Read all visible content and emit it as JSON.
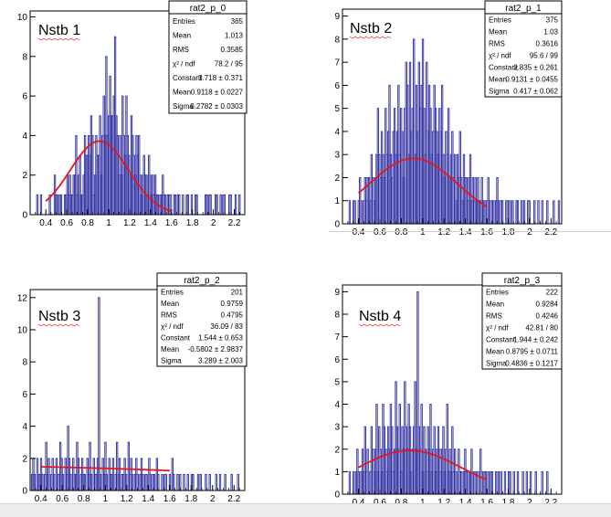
{
  "colors": {
    "hist": "#2b2b9f",
    "fit": "#e8141a",
    "frame": "#000000"
  },
  "chart_data": [
    {
      "type": "histogram",
      "label": "Nstb 1",
      "stats": {
        "title": "rat2_p_0",
        "rows": [
          {
            "k": "Entries",
            "v": "365"
          },
          {
            "k": "Mean",
            "v": "1.013"
          },
          {
            "k": "RMS",
            "v": "0.3585"
          },
          {
            "k": "χ² / ndf",
            "v": "78.2 / 95"
          },
          {
            "k": "Constant",
            "v": "3.718 ± 0.371"
          },
          {
            "k": "Mean",
            "v": "0.9118 ± 0.0227"
          },
          {
            "k": "Sigma",
            "v": "0.2782 ± 0.0303"
          }
        ]
      },
      "xlim": [
        0.25,
        2.3
      ],
      "ylim": [
        0,
        10.3
      ],
      "xticks": [
        "0.4",
        "0.6",
        "0.8",
        "1",
        "1.2",
        "1.4",
        "1.6",
        "1.8",
        "2",
        "2.2"
      ],
      "yticks": [
        "0",
        "2",
        "4",
        "6",
        "8",
        "10"
      ],
      "fit": {
        "constant": 3.718,
        "mean": 0.9118,
        "sigma": 0.2782,
        "range": [
          0.4,
          1.6
        ]
      },
      "bin_width": 0.012,
      "counts": [
        0,
        1,
        0,
        0,
        1,
        0,
        0,
        0,
        0,
        0,
        0,
        1,
        0,
        0,
        0,
        2,
        1,
        1,
        0,
        1,
        1,
        0,
        0,
        1,
        1,
        2,
        1,
        2,
        1,
        1,
        2,
        2,
        4,
        1,
        2,
        3,
        1,
        1,
        2,
        4,
        3,
        3,
        4,
        3,
        5,
        4,
        1,
        2,
        4,
        3,
        3,
        5,
        2,
        4,
        6,
        4,
        8,
        4,
        5,
        7,
        5,
        5,
        6,
        9,
        5,
        4,
        2,
        4,
        2,
        6,
        4,
        3,
        6,
        4,
        3,
        2,
        5,
        4,
        3,
        2,
        4,
        3,
        4,
        2,
        1,
        2,
        3,
        2,
        2,
        1,
        3,
        2,
        1,
        2,
        1,
        2,
        1,
        1,
        0,
        1,
        1,
        2,
        1,
        1,
        0,
        1,
        1,
        1,
        0,
        0,
        1,
        1,
        0,
        1,
        1,
        0,
        0,
        1,
        0,
        0,
        1,
        1,
        0,
        0,
        1,
        0,
        0,
        1,
        1,
        0,
        0,
        0,
        0,
        0,
        0,
        1,
        1,
        0,
        1,
        1,
        0,
        0,
        0,
        1,
        1,
        0,
        0,
        1,
        0,
        1,
        1,
        0,
        0,
        0,
        1,
        1,
        0,
        0,
        0,
        1,
        0,
        0,
        1,
        0,
        0,
        0,
        0,
        1,
        1,
        0,
        0,
        0,
        1,
        0,
        0,
        0,
        0,
        0,
        0,
        0
      ]
    },
    {
      "type": "histogram",
      "label": "Nstb 2",
      "stats": {
        "title": "rat2_p_1",
        "rows": [
          {
            "k": "Entries",
            "v": "375"
          },
          {
            "k": "Mean",
            "v": "1.03"
          },
          {
            "k": "RMS",
            "v": "0.3616"
          },
          {
            "k": "χ² / ndf",
            "v": "95.6 / 99"
          },
          {
            "k": "Constant",
            "v": "2.835 ± 0.261"
          },
          {
            "k": "Mean",
            "v": "0.9131 ± 0.0455"
          },
          {
            "k": "Sigma",
            "v": "0.417 ± 0.062"
          }
        ]
      },
      "xlim": [
        0.25,
        2.3
      ],
      "ylim": [
        0,
        9.3
      ],
      "xticks": [
        "0.4",
        "0.6",
        "0.8",
        "1",
        "1.2",
        "1.4",
        "1.6",
        "1.8",
        "2",
        "2.2"
      ],
      "yticks": [
        "0",
        "1",
        "2",
        "3",
        "4",
        "5",
        "6",
        "7",
        "8",
        "9"
      ],
      "fit": {
        "constant": 2.835,
        "mean": 0.9131,
        "sigma": 0.417,
        "range": [
          0.4,
          1.6
        ]
      },
      "bin_width": 0.012,
      "counts": [
        0,
        1,
        0,
        0,
        1,
        1,
        0,
        0,
        1,
        2,
        1,
        0,
        1,
        2,
        1,
        2,
        2,
        1,
        3,
        2,
        1,
        2,
        3,
        5,
        3,
        2,
        4,
        3,
        2,
        5,
        3,
        4,
        6,
        3,
        2,
        4,
        5,
        3,
        4,
        6,
        3,
        5,
        4,
        2,
        5,
        7,
        6,
        3,
        7,
        4,
        5,
        8,
        3,
        6,
        4,
        7,
        5,
        6,
        8,
        5,
        3,
        7,
        4,
        6,
        5,
        3,
        4,
        6,
        5,
        4,
        3,
        5,
        4,
        6,
        3,
        2,
        4,
        3,
        5,
        2,
        3,
        4,
        2,
        3,
        1,
        3,
        2,
        4,
        2,
        1,
        3,
        2,
        2,
        1,
        2,
        3,
        1,
        2,
        1,
        2,
        1,
        2,
        1,
        1,
        2,
        1,
        1,
        0,
        1,
        2,
        1,
        0,
        1,
        1,
        0,
        1,
        2,
        1,
        0,
        1,
        1,
        0,
        0,
        1,
        1,
        0,
        1,
        0,
        1,
        0,
        0,
        1,
        1,
        0,
        0,
        1,
        0,
        1,
        0,
        0,
        1,
        1,
        0,
        0,
        0,
        1,
        0,
        0,
        1,
        0,
        0,
        1,
        0,
        0,
        0,
        1,
        0,
        0,
        0,
        0,
        1,
        0,
        0,
        0,
        1,
        0,
        0,
        0,
        0,
        0,
        1,
        0,
        0
      ]
    },
    {
      "type": "histogram",
      "label": "Nstb 3",
      "stats": {
        "title": "rat2_p_2",
        "rows": [
          {
            "k": "Entries",
            "v": "201"
          },
          {
            "k": "Mean",
            "v": "0.9759"
          },
          {
            "k": "RMS",
            "v": "0.4795"
          },
          {
            "k": "χ² / ndf",
            "v": "36.09 / 83"
          },
          {
            "k": "Constant",
            "v": "1.544 ± 0.653"
          },
          {
            "k": "Mean",
            "v": "-0.5802 ± 2.9837"
          },
          {
            "k": "Sigma",
            "v": "3.289 ± 2.003"
          }
        ]
      },
      "xlim": [
        0.3,
        2.3
      ],
      "ylim": [
        0,
        12.5
      ],
      "xticks": [
        "0.4",
        "0.6",
        "0.8",
        "1",
        "1.2",
        "1.4",
        "1.6",
        "1.8",
        "2",
        "2.2"
      ],
      "yticks": [
        "0",
        "2",
        "4",
        "6",
        "8",
        "10",
        "12"
      ],
      "fit": {
        "constant": 1.544,
        "mean": -0.5802,
        "sigma": 3.289,
        "range": [
          0.4,
          1.6
        ]
      },
      "bin_width": 0.012,
      "counts": [
        0,
        1,
        2,
        1,
        0,
        2,
        1,
        1,
        2,
        1,
        0,
        1,
        3,
        1,
        2,
        0,
        1,
        2,
        1,
        0,
        2,
        1,
        1,
        3,
        2,
        1,
        0,
        2,
        1,
        4,
        2,
        1,
        0,
        2,
        1,
        1,
        3,
        2,
        0,
        1,
        2,
        1,
        1,
        0,
        2,
        1,
        3,
        1,
        0,
        2,
        1,
        1,
        2,
        12,
        1,
        0,
        2,
        1,
        3,
        1,
        0,
        2,
        1,
        1,
        2,
        0,
        1,
        3,
        1,
        2,
        0,
        1,
        1,
        2,
        1,
        0,
        3,
        1,
        2,
        1,
        0,
        1,
        2,
        1,
        0,
        1,
        2,
        1,
        0,
        1,
        1,
        0,
        2,
        1,
        0,
        1,
        1,
        0,
        2,
        1,
        0,
        0,
        1,
        0,
        1,
        1,
        0,
        0,
        1,
        0,
        2,
        1,
        0,
        0,
        1,
        0,
        1,
        0,
        0,
        1,
        0,
        0,
        1,
        0,
        0,
        1,
        1,
        0,
        0,
        0,
        1,
        0,
        1,
        0,
        0,
        0,
        1,
        0,
        0,
        1,
        0,
        0,
        0,
        0,
        1,
        0,
        0,
        1,
        0,
        0,
        0,
        1,
        0,
        0,
        0,
        0,
        1,
        0,
        0,
        0,
        0,
        1,
        0,
        0
      ]
    },
    {
      "type": "histogram",
      "label": "Nstb 4",
      "stats": {
        "title": "rat2_p_3",
        "rows": [
          {
            "k": "Entries",
            "v": "222"
          },
          {
            "k": "Mean",
            "v": "0.9284"
          },
          {
            "k": "RMS",
            "v": "0.4246"
          },
          {
            "k": "χ² / ndf",
            "v": "42.81 / 80"
          },
          {
            "k": "Constant",
            "v": "1.944 ± 0.242"
          },
          {
            "k": "Mean",
            "v": "0.8795 ± 0.0711"
          },
          {
            "k": "Sigma",
            "v": "0.4836 ± 0.1217"
          }
        ]
      },
      "xlim": [
        0.25,
        2.3
      ],
      "ylim": [
        0,
        9.3
      ],
      "xticks": [
        "0.4",
        "0.6",
        "0.8",
        "1",
        "1.2",
        "1.4",
        "1.6",
        "1.8",
        "2",
        "2.2"
      ],
      "yticks": [
        "0",
        "1",
        "2",
        "3",
        "4",
        "5",
        "6",
        "7",
        "8",
        "9"
      ],
      "fit": {
        "constant": 1.944,
        "mean": 0.8795,
        "sigma": 0.4836,
        "range": [
          0.4,
          1.6
        ]
      },
      "bin_width": 0.012,
      "counts": [
        0,
        1,
        0,
        0,
        1,
        0,
        1,
        2,
        1,
        0,
        1,
        2,
        1,
        3,
        1,
        2,
        0,
        1,
        3,
        2,
        1,
        2,
        4,
        1,
        3,
        2,
        1,
        4,
        3,
        2,
        1,
        3,
        2,
        4,
        3,
        1,
        2,
        5,
        3,
        2,
        4,
        1,
        3,
        2,
        5,
        3,
        2,
        4,
        3,
        1,
        2,
        3,
        5,
        2,
        9,
        3,
        2,
        4,
        1,
        3,
        2,
        1,
        3,
        2,
        4,
        1,
        2,
        3,
        1,
        2,
        3,
        2,
        1,
        2,
        3,
        1,
        2,
        4,
        1,
        2,
        1,
        3,
        1,
        2,
        1,
        0,
        2,
        1,
        1,
        0,
        1,
        2,
        1,
        0,
        1,
        1,
        2,
        0,
        1,
        1,
        0,
        1,
        0,
        2,
        1,
        0,
        1,
        1,
        0,
        1,
        0,
        1,
        1,
        0,
        0,
        1,
        0,
        1,
        0,
        1,
        0,
        0,
        1,
        0,
        0,
        1,
        1,
        0,
        0,
        1,
        0,
        0,
        1,
        0,
        0,
        0,
        1,
        0,
        0,
        1,
        0,
        0,
        1,
        0,
        0,
        0,
        1,
        0,
        0,
        0,
        0,
        1,
        0,
        0,
        0,
        1,
        0,
        0,
        0,
        0
      ]
    }
  ]
}
